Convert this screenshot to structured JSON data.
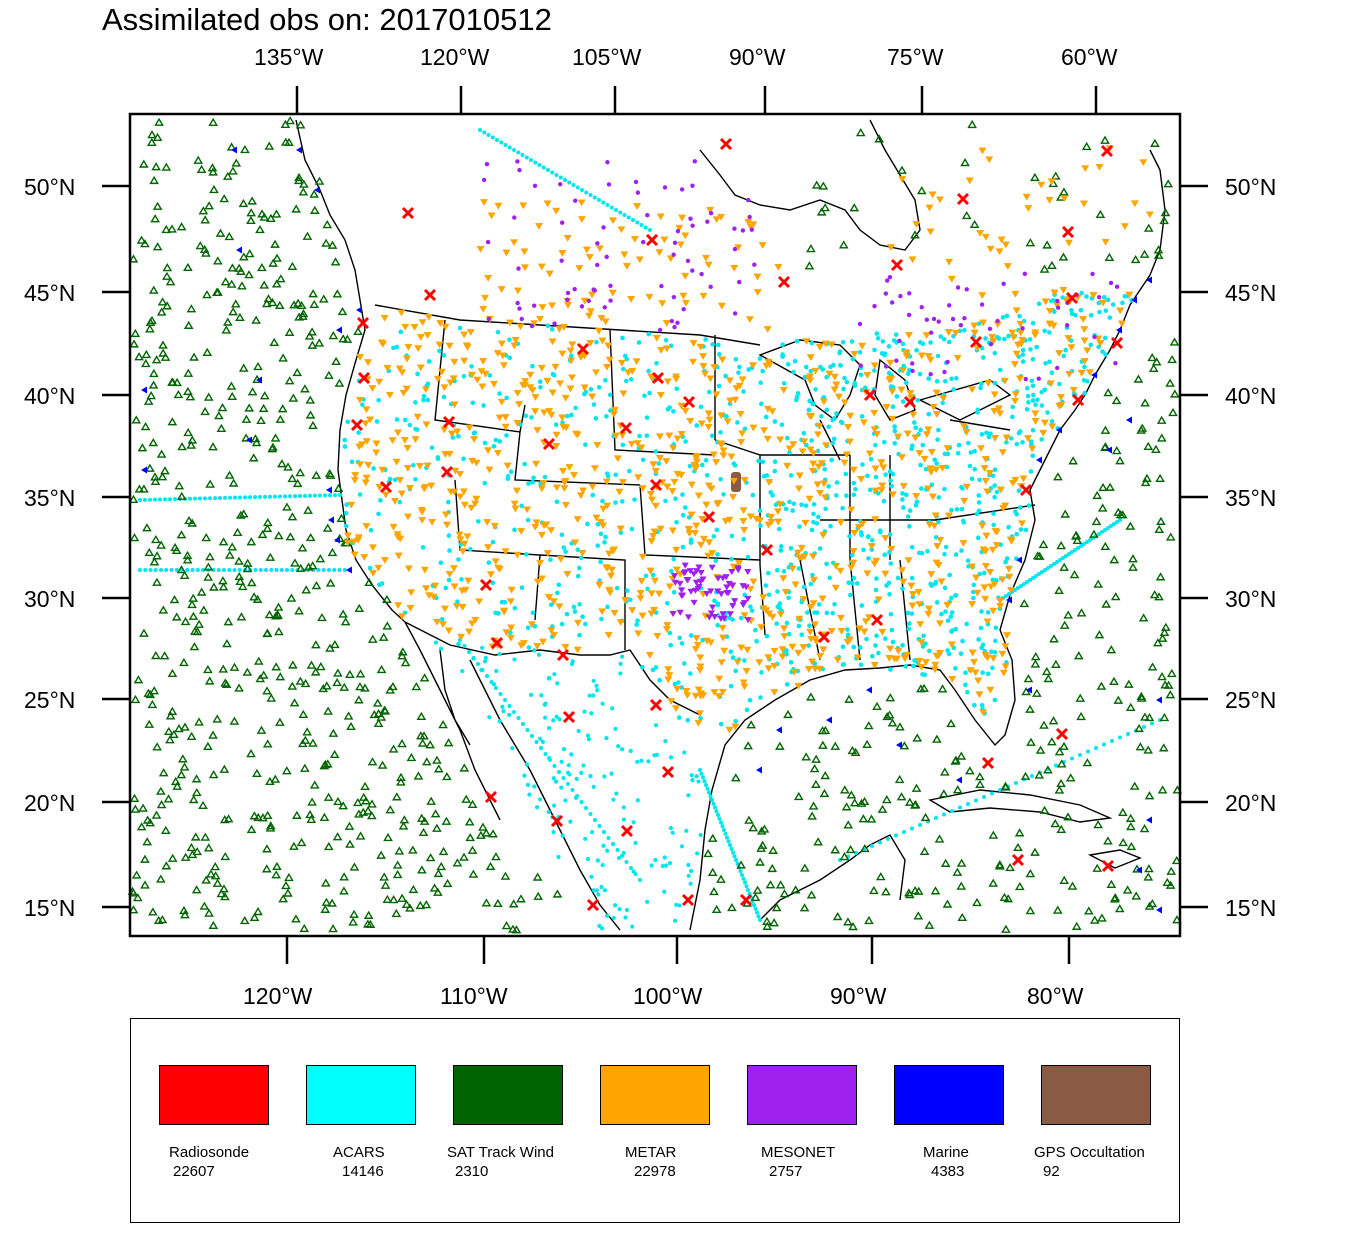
{
  "title": "Assimilated obs on: 2017010512",
  "top_axis_labels": [
    "135°W",
    "120°W",
    "105°W",
    "90°W",
    "75°W",
    "60°W"
  ],
  "bottom_axis_labels": [
    "120°W",
    "110°W",
    "100°W",
    "90°W",
    "80°W"
  ],
  "left_axis_labels": [
    "50°N",
    "45°N",
    "40°N",
    "35°N",
    "30°N",
    "25°N",
    "20°N",
    "15°N"
  ],
  "right_axis_labels": [
    "50°N",
    "45°N",
    "40°N",
    "35°N",
    "30°N",
    "25°N",
    "20°N",
    "15°N"
  ],
  "legend": [
    {
      "name": "Radiosonde",
      "count": "22607",
      "color": "#ff0000"
    },
    {
      "name": "ACARS",
      "count": "14146",
      "color": "#00ffff"
    },
    {
      "name": "SAT Track Wind",
      "count": "2310",
      "color": "#006400"
    },
    {
      "name": "METAR",
      "count": "22978",
      "color": "#ffa500"
    },
    {
      "name": "MESONET",
      "count": "2757",
      "color": "#a020f0"
    },
    {
      "name": "Marine",
      "count": "4383",
      "color": "#0000ff"
    },
    {
      "name": "GPS Occultation",
      "count": "92",
      "color": "#8b5a42"
    }
  ],
  "colors": {
    "radiosonde": "#ff0000",
    "acars": "#00e5ee",
    "sat_track_wind": "#006400",
    "metar": "#ffa500",
    "mesonet": "#a020f0",
    "marine": "#0000ff",
    "gps": "#8b5a42",
    "coastline": "#000000"
  }
}
